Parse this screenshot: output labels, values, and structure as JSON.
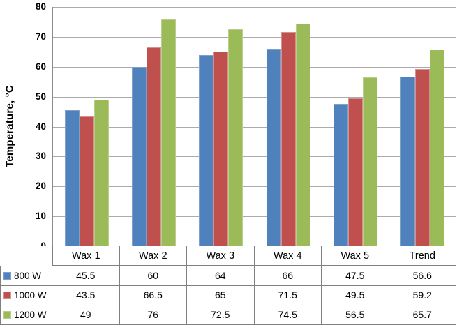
{
  "chart_data": {
    "type": "bar",
    "title": "",
    "ylabel": "Temperature, °C",
    "xlabel": "",
    "ylim": [
      0,
      80
    ],
    "yticks": [
      0,
      10,
      20,
      30,
      40,
      50,
      60,
      70,
      80
    ],
    "grid": true,
    "legend_position": "data-table-left",
    "categories": [
      "Wax 1",
      "Wax 2",
      "Wax 3",
      "Wax 4",
      "Wax 5",
      "Trend"
    ],
    "series": [
      {
        "name": "800 W",
        "color": "#4F81BD",
        "border_color": "#7EA0CB",
        "values": [
          45.5,
          60,
          64,
          66,
          47.5,
          56.6
        ]
      },
      {
        "name": "1000 W",
        "color": "#C0504D",
        "border_color": "#D5918F",
        "values": [
          43.5,
          66.5,
          65,
          71.5,
          49.5,
          59.2
        ]
      },
      {
        "name": "1200 W",
        "color": "#9BBB59",
        "border_color": "#B9CE8C",
        "values": [
          49,
          76,
          72.5,
          74.5,
          56.5,
          65.7
        ]
      }
    ]
  },
  "colors": {
    "gridline": "#ABABAB",
    "axis_line": "#808080",
    "table_border": "#808080",
    "background": "#FFFFFF",
    "text": "#000000"
  }
}
